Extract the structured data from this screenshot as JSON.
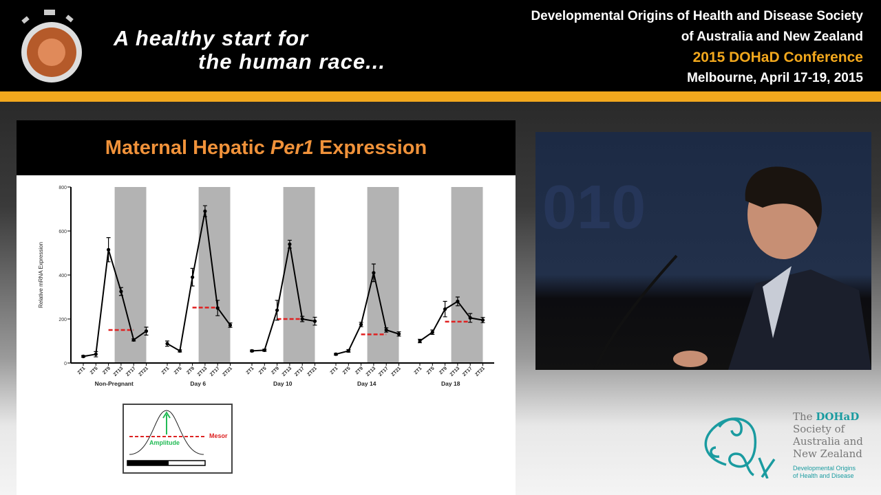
{
  "header": {
    "tagline_line1": "A healthy start for",
    "tagline_line2": "the human race...",
    "org_line1": "Developmental Origins of Health and Disease Society",
    "org_line2": "of Australia and New Zealand",
    "conference": "2015 DOHaD Conference",
    "location_date": "Melbourne, April 17-19, 2015",
    "colors": {
      "accent": "#f2a81d",
      "title": "#f0923a"
    }
  },
  "slide": {
    "title_pre": "Maternal Hepatic ",
    "title_gene": "Per1",
    "title_post": " Expression",
    "inset": {
      "mesor_label": "Mesor",
      "amplitude_label": "Amplitude"
    }
  },
  "footer": {
    "logo_the": "The ",
    "logo_name": "DOHaD",
    "logo_line2": "Society of",
    "logo_line3": "Australia and",
    "logo_line4": "New Zealand",
    "sub1": "Developmental Origins",
    "sub2": "of Health and Disease"
  },
  "chart_data": {
    "type": "line",
    "ylabel": "Relative mRNA Expression",
    "ylim": [
      0,
      800
    ],
    "yticks": [
      0,
      200,
      400,
      600,
      800
    ],
    "x_ticks": [
      "ZT1",
      "ZT5",
      "ZT9",
      "ZT13",
      "ZT17",
      "ZT21"
    ],
    "dark_phase": "ZT11-ZT21 shaded",
    "groups": [
      {
        "name": "Non-Pregnant",
        "values": [
          30,
          40,
          515,
          325,
          105,
          145
        ],
        "errors": [
          4,
          12,
          55,
          18,
          5,
          18
        ],
        "mesor": 150
      },
      {
        "name": "Day 6",
        "values": [
          88,
          55,
          390,
          690,
          250,
          172
        ],
        "errors": [
          12,
          5,
          40,
          25,
          35,
          10
        ],
        "mesor": 252
      },
      {
        "name": "Day 10",
        "values": [
          55,
          58,
          240,
          540,
          200,
          190
        ],
        "errors": [
          4,
          5,
          45,
          18,
          12,
          18
        ],
        "mesor": 200
      },
      {
        "name": "Day 14",
        "values": [
          40,
          55,
          175,
          410,
          150,
          132
        ],
        "errors": [
          4,
          6,
          10,
          40,
          10,
          10
        ],
        "mesor": 130
      },
      {
        "name": "Day 18",
        "values": [
          100,
          140,
          245,
          280,
          205,
          195
        ],
        "errors": [
          8,
          10,
          35,
          20,
          20,
          12
        ],
        "mesor": 188
      }
    ]
  }
}
